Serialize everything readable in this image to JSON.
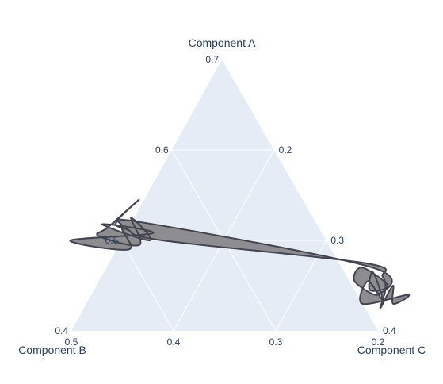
{
  "chart_data": {
    "type": "ternary",
    "axes": {
      "a": {
        "title": "Component A",
        "ticks": [
          0.4,
          0.5,
          0.6,
          0.7
        ],
        "min": 0.4
      },
      "b": {
        "title": "Component B",
        "ticks": [
          0.2,
          0.3,
          0.4,
          0.5
        ],
        "min": 0.2
      },
      "c": {
        "title": "Component C",
        "ticks": [
          0.2,
          0.3,
          0.4
        ],
        "min": 0.1
      }
    },
    "grid": true,
    "colors": {
      "background": "#e5ecf6",
      "grid": "#ffffff",
      "fill": "#8c8c91",
      "line": "#444450",
      "text": "#2a3f5f"
    },
    "series": [
      {
        "fill": "toself",
        "points": [
          {
            "a": 0.512,
            "b": 0.388,
            "c": 0.1
          },
          {
            "a": 0.52,
            "b": 0.395,
            "c": 0.085
          },
          {
            "a": 0.545,
            "b": 0.36,
            "c": 0.095
          },
          {
            "a": 0.515,
            "b": 0.405,
            "c": 0.08
          },
          {
            "a": 0.505,
            "b": 0.42,
            "c": 0.075
          },
          {
            "a": 0.495,
            "b": 0.385,
            "c": 0.12
          },
          {
            "a": 0.525,
            "b": 0.378,
            "c": 0.097
          },
          {
            "a": 0.5,
            "b": 0.372,
            "c": 0.128
          },
          {
            "a": 0.518,
            "b": 0.41,
            "c": 0.072
          },
          {
            "a": 0.508,
            "b": 0.365,
            "c": 0.127
          },
          {
            "a": 0.5,
            "b": 0.45,
            "c": 0.05
          },
          {
            "a": 0.49,
            "b": 0.398,
            "c": 0.112
          },
          {
            "a": 0.515,
            "b": 0.392,
            "c": 0.093
          },
          {
            "a": 0.52,
            "b": 0.37,
            "c": 0.11
          },
          {
            "a": 0.47,
            "b": 0.17,
            "c": 0.36
          },
          {
            "a": 0.44,
            "b": 0.18,
            "c": 0.38
          },
          {
            "a": 0.455,
            "b": 0.195,
            "c": 0.35
          },
          {
            "a": 0.47,
            "b": 0.18,
            "c": 0.35
          },
          {
            "a": 0.45,
            "b": 0.165,
            "c": 0.385
          },
          {
            "a": 0.445,
            "b": 0.185,
            "c": 0.37
          },
          {
            "a": 0.465,
            "b": 0.172,
            "c": 0.363
          },
          {
            "a": 0.435,
            "b": 0.178,
            "c": 0.387
          },
          {
            "a": 0.455,
            "b": 0.182,
            "c": 0.363
          },
          {
            "a": 0.43,
            "b": 0.2,
            "c": 0.37
          },
          {
            "a": 0.44,
            "b": 0.15,
            "c": 0.41
          },
          {
            "a": 0.43,
            "b": 0.17,
            "c": 0.4
          },
          {
            "a": 0.45,
            "b": 0.16,
            "c": 0.39
          },
          {
            "a": 0.425,
            "b": 0.185,
            "c": 0.39
          },
          {
            "a": 0.445,
            "b": 0.17,
            "c": 0.385
          },
          {
            "a": 0.46,
            "b": 0.165,
            "c": 0.375
          },
          {
            "a": 0.475,
            "b": 0.175,
            "c": 0.35
          },
          {
            "a": 0.5,
            "b": 0.36,
            "c": 0.14
          }
        ]
      }
    ]
  }
}
